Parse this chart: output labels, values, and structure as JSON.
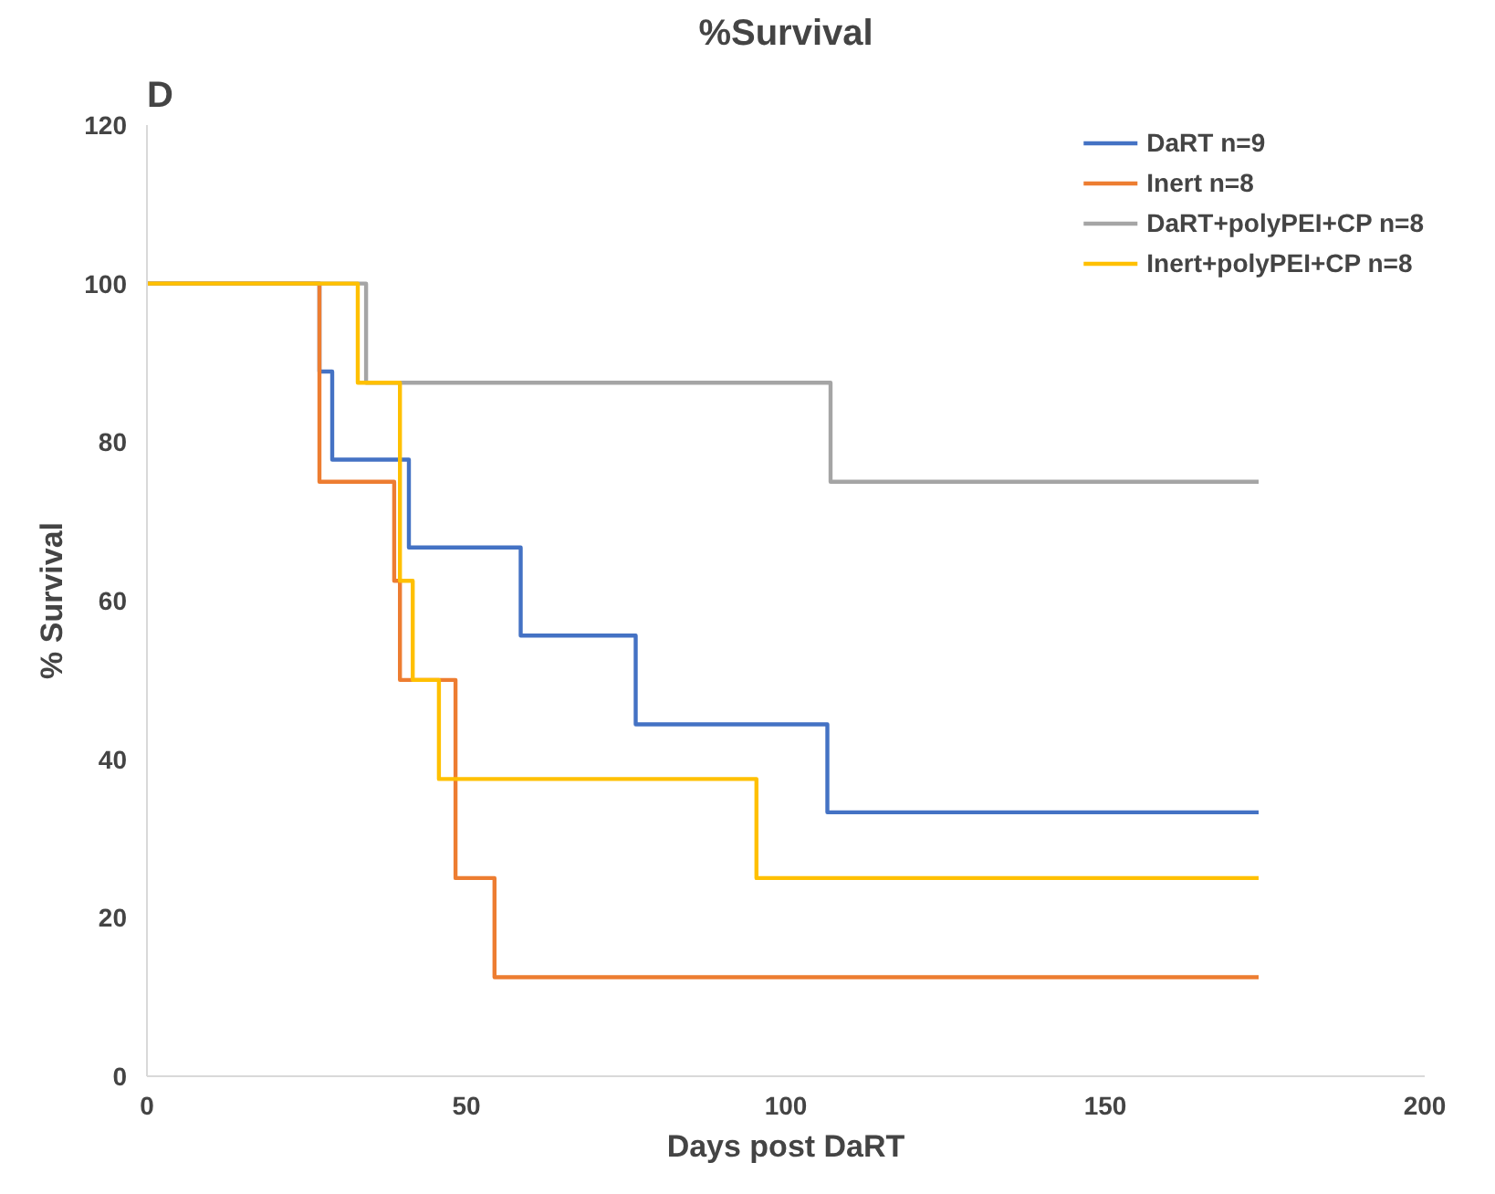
{
  "chart_data": {
    "type": "step",
    "title": "%Survival",
    "xlabel": "Days post DaRT",
    "ylabel": "% Survival",
    "annotations": [
      "D"
    ],
    "xlim": [
      0,
      200
    ],
    "xticks": [
      0,
      50,
      100,
      150,
      200
    ],
    "ylim": [
      0,
      120
    ],
    "yticks": [
      0,
      20,
      40,
      60,
      80,
      100,
      120
    ],
    "grid": false,
    "legend": "top right",
    "marker": "none",
    "line_style": "solid",
    "series": [
      {
        "name": "DaRT n=9",
        "color": "#4472c4",
        "x": [
          0,
          27,
          29,
          41,
          58.5,
          76.5,
          106.5,
          174
        ],
        "values": [
          100,
          88.9,
          77.8,
          66.7,
          55.6,
          44.4,
          33.3,
          33.3
        ]
      },
      {
        "name": "Inert n=8",
        "color": "#ed7d31",
        "x": [
          0,
          27,
          38.7,
          39.6,
          48.3,
          54.4,
          174
        ],
        "values": [
          100,
          75,
          62.5,
          50,
          25,
          12.5,
          12.5
        ]
      },
      {
        "name": "DaRT+polyPEI+CP n=8",
        "color": "#a5a5a5",
        "x": [
          0,
          34.3,
          107,
          174
        ],
        "values": [
          100,
          87.5,
          75,
          75
        ]
      },
      {
        "name": "Inert+polyPEI+CP n=8",
        "color": "#ffc000",
        "x": [
          0,
          33,
          39.6,
          41.6,
          45.7,
          95.4,
          174
        ],
        "values": [
          100,
          87.5,
          62.5,
          50,
          37.5,
          25,
          25
        ]
      }
    ]
  }
}
